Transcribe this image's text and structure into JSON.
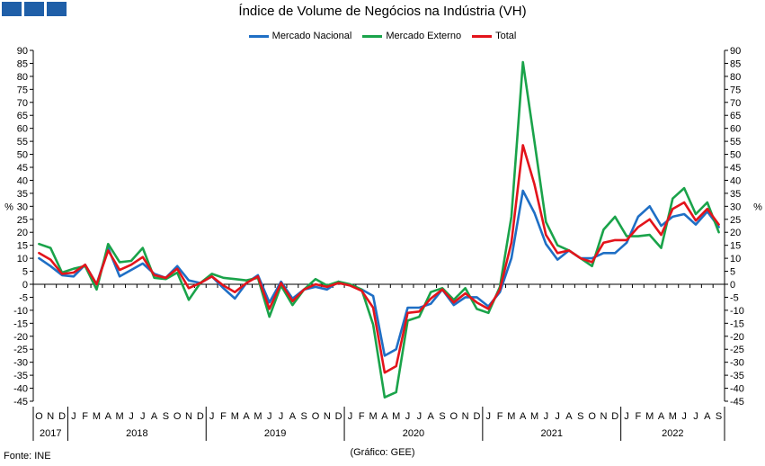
{
  "title": "Índice de Volume de Negócios na Indústria (VH)",
  "source": "Fonte: INE",
  "credit": "(Gráfico: GEE)",
  "colors": {
    "mercado_nacional": "#1f6fc5",
    "mercado_externo": "#1aa34a",
    "total": "#e3141b",
    "logo": "#1f5fa8"
  },
  "chart_data": {
    "type": "line",
    "title": "Índice de Volume de Negócios na Indústria (VH)",
    "ylabel_left": "%",
    "ylabel_right": "%",
    "ylim": [
      -45,
      90
    ],
    "y_ticks": [
      90,
      85,
      80,
      75,
      70,
      65,
      60,
      55,
      50,
      45,
      40,
      35,
      30,
      25,
      20,
      15,
      10,
      5,
      0,
      -5,
      -10,
      -15,
      -20,
      -25,
      -30,
      -35,
      -40,
      -45
    ],
    "grid": false,
    "legend_position": "top-center",
    "x": [
      "O",
      "N",
      "D",
      "J",
      "F",
      "M",
      "A",
      "M",
      "J",
      "J",
      "A",
      "S",
      "O",
      "N",
      "D",
      "J",
      "F",
      "M",
      "A",
      "M",
      "J",
      "J",
      "A",
      "S",
      "O",
      "N",
      "D",
      "J",
      "F",
      "M",
      "A",
      "M",
      "J",
      "J",
      "A",
      "S",
      "O",
      "N",
      "D",
      "J",
      "F",
      "M",
      "A",
      "M",
      "J",
      "J",
      "A",
      "S",
      "O",
      "N",
      "D",
      "J",
      "F",
      "M",
      "A",
      "M",
      "J",
      "J",
      "A",
      "S"
    ],
    "years": [
      {
        "label": "2017",
        "start": 0,
        "count": 3
      },
      {
        "label": "2018",
        "start": 3,
        "count": 12
      },
      {
        "label": "2019",
        "start": 15,
        "count": 12
      },
      {
        "label": "2020",
        "start": 27,
        "count": 12
      },
      {
        "label": "2021",
        "start": 39,
        "count": 12
      },
      {
        "label": "2022",
        "start": 51,
        "count": 9
      }
    ],
    "series": [
      {
        "name": "Mercado Nacional",
        "key": "mercado_nacional",
        "values": [
          10,
          7,
          3.5,
          3,
          7.5,
          0,
          14,
          3,
          5.5,
          8,
          4,
          2.5,
          7,
          1.5,
          0.5,
          3,
          -1.5,
          -5.5,
          0.5,
          3.5,
          -7,
          1,
          -5.5,
          -2,
          -1,
          -2,
          1,
          -0.5,
          -2,
          -4.5,
          -27.5,
          -25,
          -9,
          -9,
          -7.5,
          -2,
          -8,
          -5,
          -5,
          -8.5,
          -3,
          10,
          36,
          27.5,
          15.5,
          9.5,
          13,
          10,
          10,
          12,
          12,
          16,
          26,
          30,
          22.5,
          26,
          27,
          23,
          28,
          22
        ]
      },
      {
        "name": "Mercado Externo",
        "key": "mercado_externo",
        "values": [
          15.5,
          14,
          4.5,
          6,
          7,
          -2,
          15.5,
          8.5,
          9,
          14,
          2.5,
          2,
          4.5,
          -6,
          0.5,
          4,
          2.5,
          2,
          1.5,
          2.5,
          -12.5,
          -0.5,
          -8,
          -2,
          2,
          -0.5,
          1,
          0,
          -2,
          -15.5,
          -43.5,
          -41.5,
          -14,
          -12.5,
          -3,
          -1.5,
          -6,
          -1.5,
          -9.5,
          -11,
          -1,
          26,
          85.5,
          55,
          24,
          15,
          13,
          10,
          7,
          21,
          26,
          18.5,
          18.5,
          19,
          14,
          33,
          37,
          27,
          31.5,
          20
        ]
      },
      {
        "name": "Total",
        "key": "total",
        "values": [
          12,
          9.5,
          4,
          4.5,
          7.5,
          0,
          13,
          5.5,
          7.5,
          10.5,
          3.5,
          2.5,
          6,
          -1.5,
          0.5,
          3,
          -0.5,
          -3,
          0.5,
          3,
          -9.5,
          0.5,
          -6.5,
          -2,
          0,
          -1,
          0.5,
          -0.5,
          -2.5,
          -9,
          -34,
          -31.5,
          -11,
          -10.5,
          -5.5,
          -2,
          -7,
          -3.5,
          -7,
          -9.5,
          -2,
          16,
          53.5,
          38.5,
          19,
          12,
          13,
          10,
          8.5,
          16,
          17,
          17,
          22,
          25,
          19,
          29,
          31.5,
          24.5,
          29,
          23
        ]
      }
    ]
  }
}
